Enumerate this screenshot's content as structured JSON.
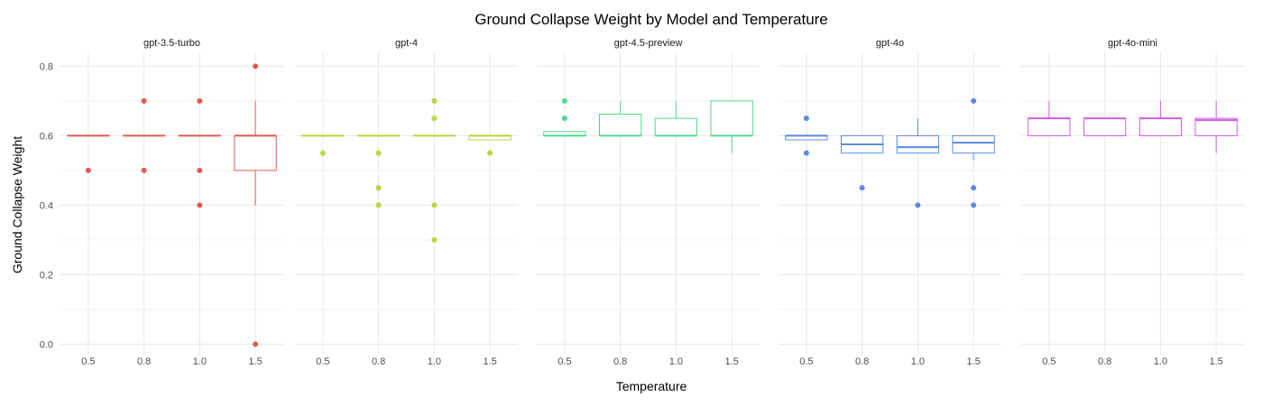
{
  "chart_data": {
    "type": "box",
    "title": "Ground Collapse Weight by Model and Temperature",
    "xlabel": "Temperature",
    "ylabel": "Ground Collapse Weight",
    "ylim": [
      -0.03,
      0.84
    ],
    "y_ticks": [
      "0.0",
      "0.2",
      "0.4",
      "0.6",
      "0.8"
    ],
    "x_categories": [
      "0.5",
      "0.8",
      "1.0",
      "1.5"
    ],
    "grid": true,
    "legend": "none",
    "facets": [
      {
        "name": "gpt-3.5-turbo",
        "color": "#e05a4f",
        "boxes": [
          {
            "x": "0.5",
            "q1": 0.6,
            "median": 0.6,
            "q3": 0.6,
            "lower": 0.6,
            "upper": 0.6,
            "outliers": [
              0.5
            ]
          },
          {
            "x": "0.8",
            "q1": 0.6,
            "median": 0.6,
            "q3": 0.6,
            "lower": 0.6,
            "upper": 0.6,
            "outliers": [
              0.7,
              0.5
            ]
          },
          {
            "x": "1.0",
            "q1": 0.6,
            "median": 0.6,
            "q3": 0.6,
            "lower": 0.6,
            "upper": 0.6,
            "outliers": [
              0.7,
              0.5,
              0.4
            ]
          },
          {
            "x": "1.5",
            "q1": 0.5,
            "median": 0.6,
            "q3": 0.6,
            "lower": 0.4,
            "upper": 0.7,
            "outliers": [
              0.8,
              0.0
            ]
          }
        ]
      },
      {
        "name": "gpt-4",
        "color": "#b5d83d",
        "boxes": [
          {
            "x": "0.5",
            "q1": 0.6,
            "median": 0.6,
            "q3": 0.6,
            "lower": 0.6,
            "upper": 0.6,
            "outliers": [
              0.55
            ]
          },
          {
            "x": "0.8",
            "q1": 0.6,
            "median": 0.6,
            "q3": 0.6,
            "lower": 0.6,
            "upper": 0.6,
            "outliers": [
              0.55,
              0.45,
              0.4
            ]
          },
          {
            "x": "1.0",
            "q1": 0.6,
            "median": 0.6,
            "q3": 0.6,
            "lower": 0.6,
            "upper": 0.6,
            "outliers": [
              0.7,
              0.65,
              0.4,
              0.3
            ]
          },
          {
            "x": "1.5",
            "q1": 0.588,
            "median": 0.6,
            "q3": 0.6,
            "lower": 0.588,
            "upper": 0.6,
            "outliers": [
              0.55
            ]
          }
        ]
      },
      {
        "name": "gpt-4.5-preview",
        "color": "#4bd98f",
        "boxes": [
          {
            "x": "0.5",
            "q1": 0.6,
            "median": 0.6,
            "q3": 0.612,
            "lower": 0.6,
            "upper": 0.612,
            "outliers": [
              0.7,
              0.65
            ]
          },
          {
            "x": "0.8",
            "q1": 0.6,
            "median": 0.6,
            "q3": 0.662,
            "lower": 0.6,
            "upper": 0.7,
            "outliers": []
          },
          {
            "x": "1.0",
            "q1": 0.6,
            "median": 0.6,
            "q3": 0.65,
            "lower": 0.6,
            "upper": 0.7,
            "outliers": []
          },
          {
            "x": "1.5",
            "q1": 0.6,
            "median": 0.6,
            "q3": 0.7,
            "lower": 0.55,
            "upper": 0.7,
            "outliers": []
          }
        ]
      },
      {
        "name": "gpt-4o",
        "color": "#5a8ae0",
        "boxes": [
          {
            "x": "0.5",
            "q1": 0.588,
            "median": 0.6,
            "q3": 0.6,
            "lower": 0.588,
            "upper": 0.6,
            "outliers": [
              0.65,
              0.55
            ]
          },
          {
            "x": "0.8",
            "q1": 0.55,
            "median": 0.575,
            "q3": 0.6,
            "lower": 0.55,
            "upper": 0.6,
            "outliers": [
              0.45
            ]
          },
          {
            "x": "1.0",
            "q1": 0.55,
            "median": 0.567,
            "q3": 0.6,
            "lower": 0.55,
            "upper": 0.65,
            "outliers": [
              0.4
            ]
          },
          {
            "x": "1.5",
            "q1": 0.55,
            "median": 0.58,
            "q3": 0.6,
            "lower": 0.53,
            "upper": 0.6,
            "outliers": [
              0.7,
              0.45,
              0.4
            ]
          }
        ]
      },
      {
        "name": "gpt-4o-mini",
        "color": "#cc5ce0",
        "boxes": [
          {
            "x": "0.5",
            "q1": 0.6,
            "median": 0.65,
            "q3": 0.65,
            "lower": 0.6,
            "upper": 0.7,
            "outliers": []
          },
          {
            "x": "0.8",
            "q1": 0.6,
            "median": 0.65,
            "q3": 0.65,
            "lower": 0.6,
            "upper": 0.65,
            "outliers": []
          },
          {
            "x": "1.0",
            "q1": 0.6,
            "median": 0.65,
            "q3": 0.65,
            "lower": 0.6,
            "upper": 0.7,
            "outliers": []
          },
          {
            "x": "1.5",
            "q1": 0.6,
            "median": 0.645,
            "q3": 0.65,
            "lower": 0.55,
            "upper": 0.7,
            "outliers": []
          }
        ]
      }
    ]
  }
}
